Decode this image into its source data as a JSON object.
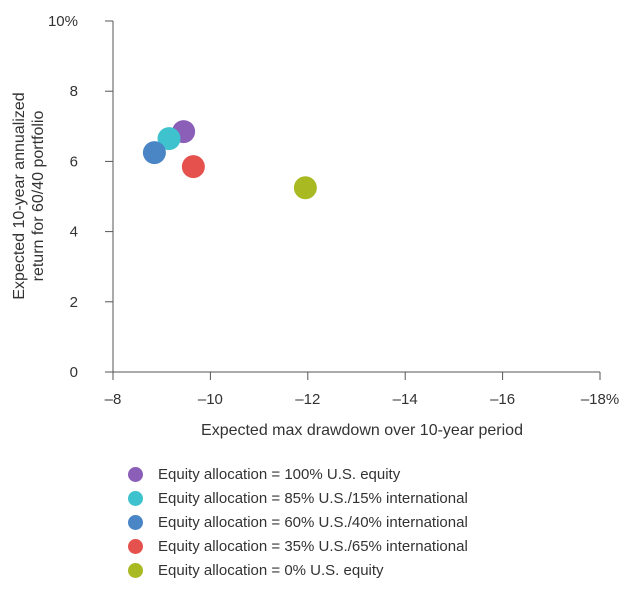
{
  "chart_data": {
    "type": "scatter",
    "xlabel": "Expected max drawdown over 10-year period",
    "ylabel_lines": [
      "Expected 10-year annualized",
      "return for 60/40 portfolio"
    ],
    "xlim": [
      -8,
      -18
    ],
    "ylim": [
      0,
      10
    ],
    "x_ticks": [
      -8,
      -10,
      -12,
      -14,
      -16,
      -18
    ],
    "x_tick_labels": [
      "–8",
      "–10",
      "–12",
      "–14",
      "–16",
      "–18%"
    ],
    "y_ticks": [
      0,
      2,
      4,
      6,
      8,
      10
    ],
    "y_tick_labels": [
      "0",
      "2",
      "4",
      "6",
      "8",
      "10%"
    ],
    "grid": false,
    "legend_position": "bottom",
    "series": [
      {
        "name": "Equity allocation = 100% U.S. equity",
        "color": "#8b5fb8",
        "x": -9.45,
        "y": 6.85
      },
      {
        "name": "Equity allocation = 85% U.S./15% international",
        "color": "#3ec2cd",
        "x": -9.15,
        "y": 6.65
      },
      {
        "name": "Equity allocation = 60% U.S./40% international",
        "color": "#4a86c5",
        "x": -8.85,
        "y": 6.25
      },
      {
        "name": "Equity allocation = 35% U.S./65% international",
        "color": "#e5514d",
        "x": -9.65,
        "y": 5.85
      },
      {
        "name": "Equity allocation = 0% U.S. equity",
        "color": "#a9b922",
        "x": -11.95,
        "y": 5.25
      }
    ]
  }
}
